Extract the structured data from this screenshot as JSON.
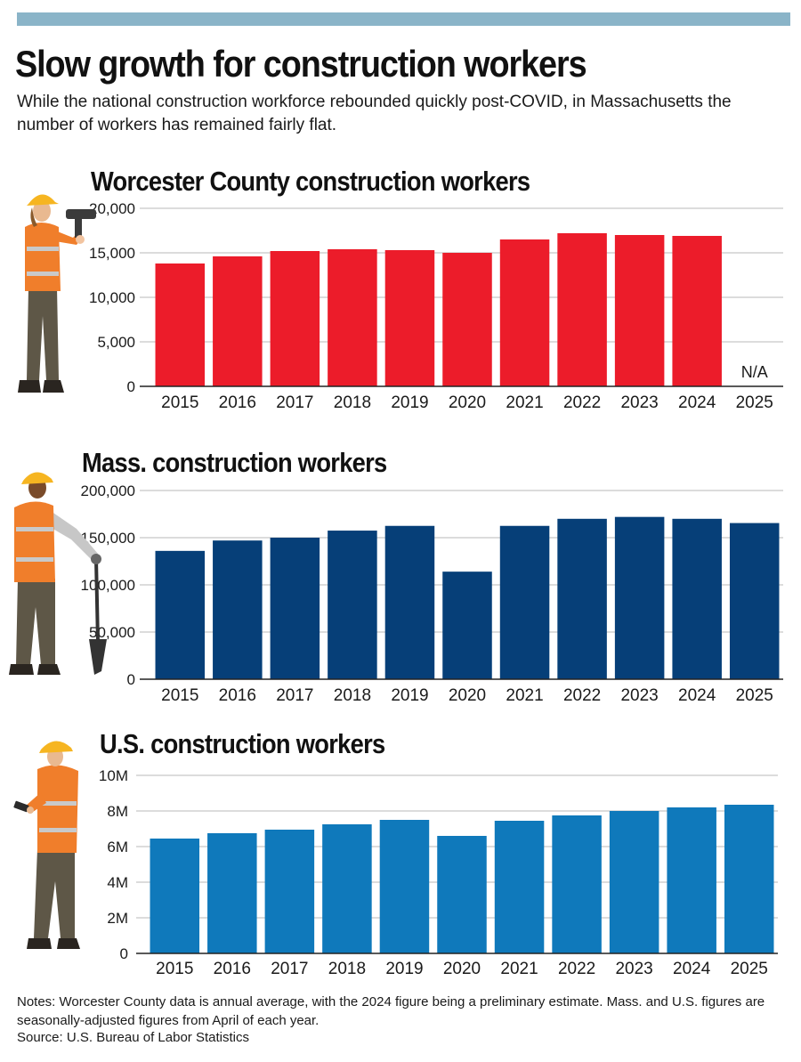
{
  "headline": "Slow growth for construction workers",
  "dek": "While the national construction workforce rebounded quickly post-COVID, in Massachusetts the number of workers has remained fairly flat.",
  "notes": "Notes: Worcester County data is annual average, with the 2024 figure being a preliminary estimate. Mass. and U.S. figures are seasonally-adjusted figures from April of each year.",
  "source": "Source: U.S. Bureau of Labor Statistics",
  "colors": {
    "top_bar": "#8ab4c8",
    "worcester": "#ec1c2a",
    "mass": "#063f78",
    "us": "#0f79bb",
    "grid": "#c8c8c8",
    "vest": "#f07e2b",
    "helmet": "#f6b521"
  },
  "icons": [
    "worker-with-drill-icon",
    "worker-with-shovel-icon",
    "worker-with-phone-icon"
  ],
  "chart_data": [
    {
      "type": "bar",
      "title": "Worcester County construction workers",
      "categories": [
        "2015",
        "2016",
        "2017",
        "2018",
        "2019",
        "2020",
        "2021",
        "2022",
        "2023",
        "2024",
        "2025"
      ],
      "values": [
        13800,
        14600,
        15200,
        15400,
        15300,
        15000,
        16500,
        17200,
        17000,
        16900,
        null
      ],
      "missing_label": "N/A",
      "ylim": [
        0,
        20000
      ],
      "yticks": [
        0,
        5000,
        10000,
        15000,
        20000
      ],
      "ytick_labels": [
        "0",
        "5,000",
        "10,000",
        "15,000",
        "20,000"
      ],
      "grid": true,
      "color": "#ec1c2a"
    },
    {
      "type": "bar",
      "title": "Mass. construction workers",
      "categories": [
        "2015",
        "2016",
        "2017",
        "2018",
        "2019",
        "2020",
        "2021",
        "2022",
        "2023",
        "2024",
        "2025"
      ],
      "values": [
        136000,
        147000,
        150000,
        157500,
        162500,
        114000,
        162500,
        170000,
        172000,
        170000,
        165500
      ],
      "ylim": [
        0,
        200000
      ],
      "yticks": [
        0,
        50000,
        100000,
        150000,
        200000
      ],
      "ytick_labels": [
        "0",
        "50,000",
        "100,000",
        "150,000",
        "200,000"
      ],
      "grid": true,
      "color": "#063f78"
    },
    {
      "type": "bar",
      "title": "U.S. construction workers",
      "categories": [
        "2015",
        "2016",
        "2017",
        "2018",
        "2019",
        "2020",
        "2021",
        "2022",
        "2023",
        "2024",
        "2025"
      ],
      "values": [
        6.45,
        6.75,
        6.95,
        7.25,
        7.5,
        6.6,
        7.45,
        7.75,
        8.0,
        8.2,
        8.35
      ],
      "ylim": [
        0,
        10
      ],
      "yticks": [
        0,
        2,
        4,
        6,
        8,
        10
      ],
      "ytick_labels": [
        "0",
        "2M",
        "4M",
        "6M",
        "8M",
        "10M"
      ],
      "grid": true,
      "color": "#0f79bb"
    }
  ]
}
